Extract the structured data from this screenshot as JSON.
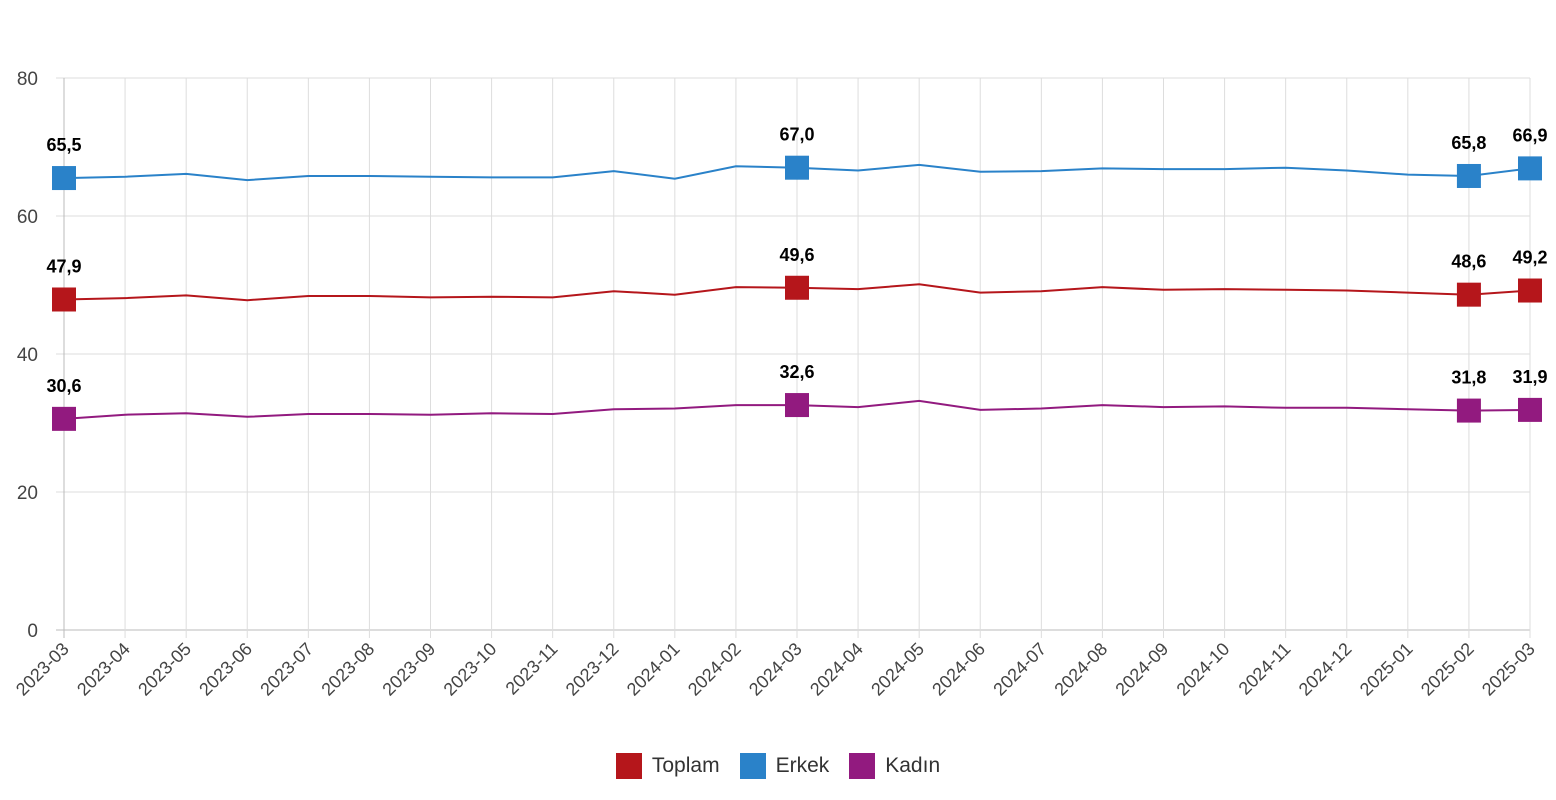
{
  "chart_data": {
    "type": "line",
    "title": "",
    "xlabel": "",
    "ylabel": "",
    "ylim": [
      0,
      80
    ],
    "yticks": [
      0,
      20,
      40,
      60,
      80
    ],
    "grid": true,
    "legend_position": "bottom",
    "categories": [
      "2023-03",
      "2023-04",
      "2023-05",
      "2023-06",
      "2023-07",
      "2023-08",
      "2023-09",
      "2023-10",
      "2023-11",
      "2023-12",
      "2024-01",
      "2024-02",
      "2024-03",
      "2024-04",
      "2024-05",
      "2024-06",
      "2024-07",
      "2024-08",
      "2024-09",
      "2024-10",
      "2024-11",
      "2024-12",
      "2025-01",
      "2025-02",
      "2025-03"
    ],
    "labeled_indices": [
      0,
      12,
      23,
      24
    ],
    "series": [
      {
        "name": "Toplam",
        "color": "#b5161b",
        "values": [
          47.9,
          48.1,
          48.5,
          47.8,
          48.4,
          48.4,
          48.2,
          48.3,
          48.2,
          49.1,
          48.6,
          49.7,
          49.6,
          49.4,
          50.1,
          48.9,
          49.1,
          49.7,
          49.3,
          49.4,
          49.3,
          49.2,
          48.9,
          48.6,
          49.2
        ],
        "labels": [
          "47,9",
          "49,6",
          "48,6",
          "49,2"
        ]
      },
      {
        "name": "Erkek",
        "color": "#2a82c9",
        "values": [
          65.5,
          65.7,
          66.1,
          65.2,
          65.8,
          65.8,
          65.7,
          65.6,
          65.6,
          66.5,
          65.4,
          67.2,
          67.0,
          66.6,
          67.4,
          66.4,
          66.5,
          66.9,
          66.8,
          66.8,
          67.0,
          66.6,
          66.0,
          65.8,
          66.9
        ],
        "labels": [
          "65,5",
          "67,0",
          "65,8",
          "66,9"
        ]
      },
      {
        "name": "Kadın",
        "color": "#921a7f",
        "values": [
          30.6,
          31.2,
          31.4,
          30.9,
          31.3,
          31.3,
          31.2,
          31.4,
          31.3,
          32.0,
          32.1,
          32.6,
          32.6,
          32.3,
          33.2,
          31.9,
          32.1,
          32.6,
          32.3,
          32.4,
          32.2,
          32.2,
          32.0,
          31.8,
          31.9
        ],
        "labels": [
          "30,6",
          "32,6",
          "31,8",
          "31,9"
        ]
      }
    ]
  }
}
